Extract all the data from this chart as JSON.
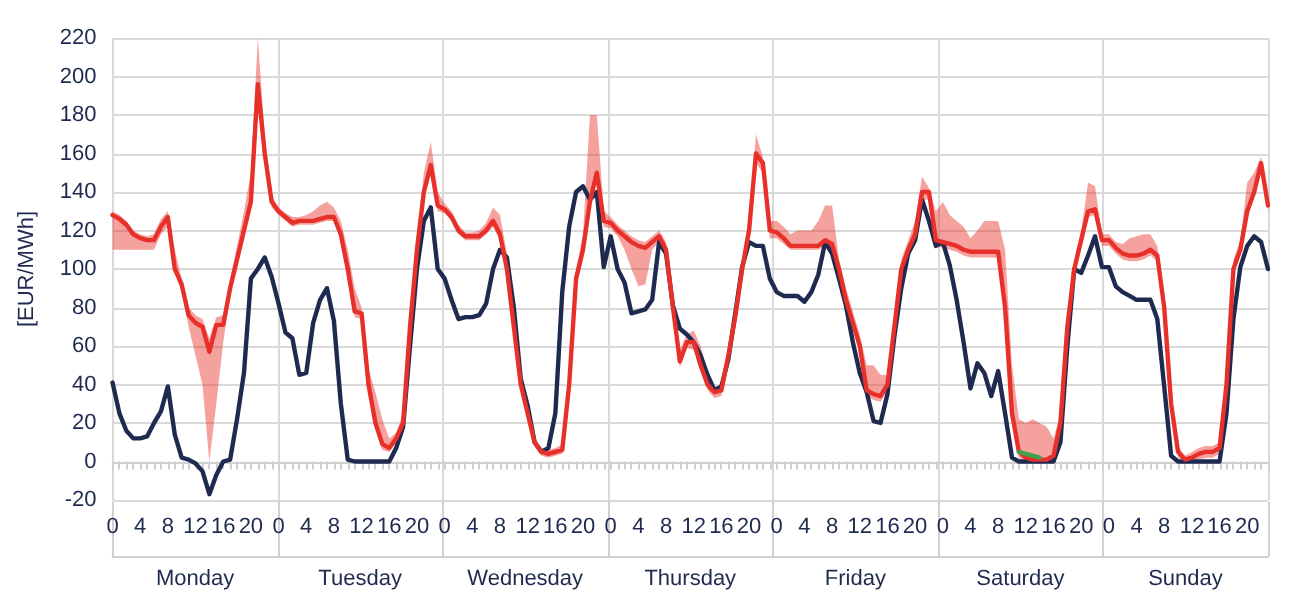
{
  "chart_data": {
    "type": "line",
    "ylabel": "[EUR/MWh]",
    "categories": [
      "0",
      null,
      null,
      null,
      "4",
      null,
      null,
      null,
      "8",
      null,
      null,
      null,
      "12",
      null,
      null,
      null,
      "16",
      null,
      null,
      null,
      "20",
      null,
      null,
      null,
      "0",
      null,
      null,
      null,
      "4",
      null,
      null,
      null,
      "8",
      null,
      null,
      null,
      "12",
      null,
      null,
      null,
      "16",
      null,
      null,
      null,
      "20",
      null,
      null,
      null,
      "0",
      null,
      null,
      null,
      "4",
      null,
      null,
      null,
      "8",
      null,
      null,
      null,
      "12",
      null,
      null,
      null,
      "16",
      null,
      null,
      null,
      "20",
      null,
      null,
      null,
      "0",
      null,
      null,
      null,
      "4",
      null,
      null,
      null,
      "8",
      null,
      null,
      null,
      "12",
      null,
      null,
      null,
      "16",
      null,
      null,
      null,
      "20",
      null,
      null,
      null,
      "0",
      null,
      null,
      null,
      "4",
      null,
      null,
      null,
      "8",
      null,
      null,
      null,
      "12",
      null,
      null,
      null,
      "16",
      null,
      null,
      null,
      "20",
      null,
      null,
      null,
      "0",
      null,
      null,
      null,
      "4",
      null,
      null,
      null,
      "8",
      null,
      null,
      null,
      "12",
      null,
      null,
      null,
      "16",
      null,
      null,
      null,
      "20",
      null,
      null,
      null,
      "0",
      null,
      null,
      null,
      "4",
      null,
      null,
      null,
      "8",
      null,
      null,
      null,
      "12",
      null,
      null,
      null,
      "16",
      null,
      null,
      null,
      "20",
      null,
      null,
      null
    ],
    "annotations": [
      "Monday",
      "Tuesday",
      "Wednesday",
      "Thursday",
      "Friday",
      "Saturday",
      "Sunday"
    ],
    "ylim": [
      -20,
      220
    ],
    "yticks": [
      -20,
      0,
      20,
      40,
      60,
      80,
      100,
      120,
      140,
      160,
      180,
      200,
      220
    ],
    "grid": true,
    "marker": "none",
    "line_style": "solid",
    "series": [
      {
        "color": "#1f2a50",
        "values": [
          41,
          25,
          16,
          12,
          12,
          13,
          20,
          26,
          39,
          14,
          2,
          1,
          -1,
          -5,
          -17,
          -7,
          0,
          1,
          22,
          46,
          95,
          100,
          106,
          96,
          82,
          67,
          64,
          45,
          46,
          72,
          84,
          90,
          73,
          30,
          1,
          0,
          0,
          0,
          0,
          0,
          0,
          7,
          18,
          60,
          100,
          125,
          132,
          100,
          95,
          84,
          74,
          75,
          75,
          76,
          82,
          100,
          110,
          106,
          80,
          43,
          29,
          10,
          5,
          7,
          25,
          88,
          122,
          140,
          143,
          136,
          140,
          101,
          117,
          100,
          93,
          77,
          78,
          79,
          84,
          114,
          108,
          81,
          69,
          66,
          62,
          55,
          45,
          37,
          39,
          53,
          77,
          101,
          114,
          112,
          112,
          95,
          88,
          86,
          86,
          86,
          83,
          88,
          97,
          114,
          108,
          95,
          81,
          62,
          46,
          36,
          21,
          20,
          35,
          65,
          90,
          108,
          115,
          136,
          125,
          112,
          114,
          102,
          84,
          62,
          38,
          51,
          46,
          34,
          47,
          25,
          2,
          0,
          0,
          0,
          0,
          0,
          0,
          10,
          60,
          100,
          98,
          107,
          117,
          101,
          101,
          91,
          88,
          86,
          84,
          84,
          84,
          74,
          39,
          3,
          0,
          0,
          0,
          0,
          0,
          0,
          0,
          25,
          74,
          101,
          112,
          117,
          114,
          100
        ]
      },
      {
        "color": "#e8302a",
        "values": [
          128,
          126,
          123,
          118,
          116,
          115,
          115,
          122,
          127,
          100,
          92,
          76,
          72,
          70,
          57,
          71,
          71,
          90,
          105,
          120,
          135,
          196,
          160,
          135,
          130,
          127,
          124,
          125,
          125,
          125,
          126,
          127,
          127,
          118,
          100,
          78,
          77,
          40,
          20,
          9,
          7,
          12,
          20,
          70,
          110,
          140,
          154,
          133,
          131,
          127,
          120,
          117,
          117,
          117,
          120,
          125,
          118,
          100,
          70,
          40,
          25,
          10,
          5,
          4,
          5,
          6,
          40,
          95,
          110,
          135,
          150,
          125,
          124,
          120,
          117,
          114,
          112,
          111,
          114,
          117,
          110,
          80,
          52,
          62,
          62,
          50,
          40,
          36,
          37,
          55,
          75,
          100,
          120,
          160,
          155,
          120,
          119,
          116,
          112,
          112,
          112,
          112,
          112,
          115,
          113,
          100,
          84,
          72,
          60,
          37,
          35,
          34,
          40,
          70,
          100,
          110,
          118,
          140,
          140,
          115,
          114,
          113,
          112,
          110,
          109,
          109,
          109,
          109,
          109,
          80,
          25,
          5,
          2,
          1,
          1,
          1,
          3,
          20,
          70,
          100,
          115,
          130,
          131,
          115,
          115,
          111,
          108,
          107,
          107,
          108,
          110,
          107,
          80,
          30,
          5,
          1,
          2,
          4,
          5,
          5,
          7,
          40,
          100,
          110,
          130,
          140,
          155,
          133
        ],
        "upper": [
          130,
          128,
          125,
          120,
          118,
          117,
          118,
          126,
          130,
          110,
          95,
          80,
          76,
          74,
          64,
          75,
          76,
          95,
          112,
          130,
          150,
          220,
          170,
          138,
          132,
          129,
          127,
          127,
          128,
          130,
          133,
          135,
          132,
          125,
          110,
          90,
          80,
          48,
          36,
          22,
          12,
          15,
          25,
          78,
          118,
          150,
          166,
          140,
          134,
          130,
          123,
          119,
          119,
          120,
          124,
          132,
          128,
          108,
          78,
          45,
          28,
          12,
          7,
          6,
          7,
          9,
          45,
          100,
          118,
          180,
          180,
          130,
          127,
          123,
          120,
          117,
          115,
          114,
          117,
          120,
          114,
          85,
          58,
          66,
          68,
          60,
          46,
          38,
          40,
          58,
          80,
          105,
          128,
          170,
          158,
          125,
          125,
          122,
          118,
          120,
          120,
          120,
          125,
          133,
          133,
          105,
          90,
          78,
          66,
          50,
          50,
          45,
          45,
          75,
          105,
          115,
          125,
          148,
          142,
          130,
          135,
          128,
          125,
          122,
          116,
          120,
          125,
          125,
          125,
          110,
          50,
          22,
          20,
          22,
          20,
          18,
          12,
          25,
          75,
          105,
          120,
          145,
          143,
          118,
          118,
          114,
          113,
          116,
          117,
          118,
          118,
          112,
          85,
          35,
          8,
          3,
          5,
          7,
          8,
          8,
          10,
          45,
          105,
          115,
          145,
          150,
          158,
          138
        ],
        "lower": [
          110,
          110,
          110,
          110,
          110,
          110,
          110,
          118,
          122,
          98,
          88,
          70,
          55,
          40,
          0,
          30,
          62,
          86,
          102,
          118,
          132,
          190,
          155,
          132,
          128,
          125,
          122,
          123,
          123,
          123,
          124,
          125,
          125,
          115,
          97,
          75,
          74,
          37,
          17,
          6,
          5,
          10,
          18,
          66,
          106,
          136,
          150,
          130,
          129,
          125,
          118,
          115,
          115,
          115,
          118,
          122,
          115,
          97,
          67,
          37,
          22,
          8,
          3,
          2,
          3,
          4,
          36,
          90,
          106,
          131,
          146,
          122,
          121,
          117,
          110,
          100,
          91,
          92,
          110,
          114,
          107,
          77,
          49,
          59,
          58,
          47,
          37,
          33,
          34,
          52,
          72,
          96,
          116,
          155,
          150,
          116,
          116,
          113,
          110,
          110,
          110,
          110,
          110,
          112,
          110,
          97,
          81,
          69,
          57,
          34,
          32,
          31,
          37,
          67,
          97,
          107,
          115,
          136,
          136,
          112,
          111,
          110,
          109,
          107,
          106,
          106,
          106,
          106,
          106,
          77,
          22,
          2,
          0,
          0,
          0,
          0,
          1,
          17,
          66,
          96,
          112,
          127,
          128,
          112,
          112,
          108,
          105,
          104,
          104,
          105,
          107,
          104,
          77,
          27,
          2,
          0,
          0,
          1,
          2,
          2,
          4,
          37,
          97,
          107,
          127,
          137,
          150,
          130
        ]
      },
      {
        "color": "#3fa34d",
        "values": [
          null,
          null,
          null,
          null,
          null,
          null,
          null,
          null,
          null,
          null,
          null,
          null,
          null,
          null,
          null,
          null,
          null,
          null,
          null,
          null,
          null,
          null,
          null,
          null,
          null,
          null,
          null,
          null,
          null,
          null,
          null,
          null,
          null,
          null,
          null,
          null,
          null,
          null,
          null,
          null,
          null,
          null,
          null,
          null,
          null,
          null,
          null,
          null,
          null,
          null,
          null,
          null,
          null,
          null,
          null,
          null,
          null,
          null,
          null,
          null,
          null,
          null,
          null,
          null,
          null,
          null,
          null,
          null,
          null,
          null,
          null,
          null,
          null,
          null,
          null,
          null,
          null,
          null,
          null,
          null,
          null,
          null,
          null,
          null,
          null,
          null,
          null,
          null,
          null,
          null,
          null,
          null,
          null,
          null,
          null,
          null,
          null,
          null,
          null,
          null,
          null,
          null,
          null,
          null,
          null,
          null,
          null,
          null,
          null,
          null,
          null,
          null,
          null,
          null,
          null,
          null,
          null,
          null,
          null,
          null,
          null,
          null,
          null,
          null,
          null,
          null,
          null,
          null,
          null,
          null,
          null,
          5,
          4,
          3,
          2,
          null,
          null,
          null,
          null,
          null,
          null,
          null,
          null,
          null,
          null,
          null,
          null,
          null,
          null,
          null,
          null,
          null,
          null,
          null,
          null,
          null,
          null,
          null,
          null,
          null,
          null,
          null,
          null,
          null,
          null,
          null,
          null,
          null
        ]
      }
    ]
  }
}
